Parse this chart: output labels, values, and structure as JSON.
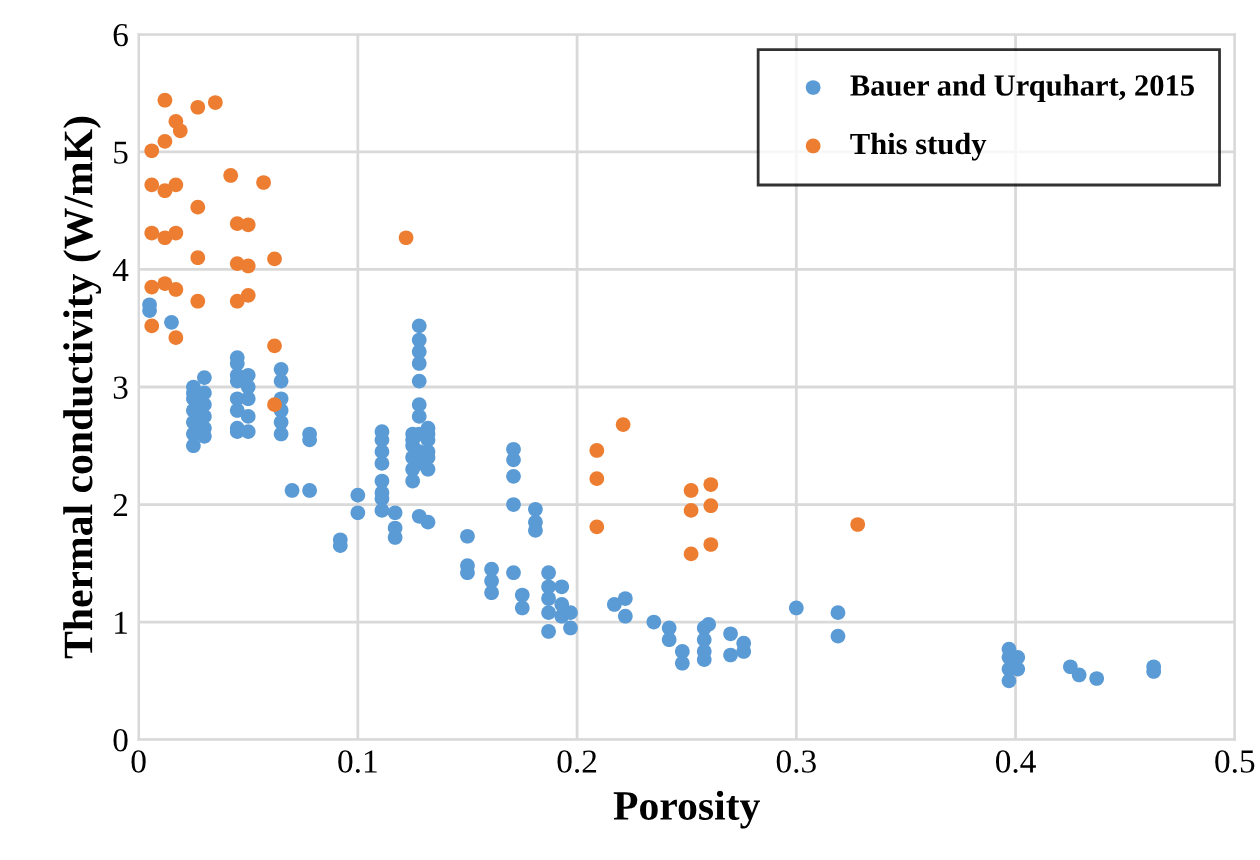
{
  "chart_data": {
    "type": "scatter",
    "xlabel": "Porosity",
    "ylabel": "Thermal conductivity (W/mK)",
    "xlim": [
      0,
      0.5
    ],
    "ylim": [
      0,
      6
    ],
    "xticks": [
      0,
      0.1,
      0.2,
      0.3,
      0.4,
      0.5
    ],
    "yticks": [
      0,
      1,
      2,
      3,
      4,
      5,
      6
    ],
    "grid": true,
    "legend": "top right",
    "marker": "circle",
    "series": [
      {
        "name": "Bauer and Urquhart, 2015",
        "color": "#5b9bd5",
        "x": [
          0.005,
          0.005,
          0.015,
          0.025,
          0.025,
          0.025,
          0.025,
          0.025,
          0.025,
          0.025,
          0.03,
          0.03,
          0.03,
          0.03,
          0.03,
          0.03,
          0.045,
          0.045,
          0.045,
          0.045,
          0.045,
          0.045,
          0.045,
          0.045,
          0.05,
          0.05,
          0.05,
          0.05,
          0.05,
          0.065,
          0.065,
          0.065,
          0.065,
          0.065,
          0.065,
          0.07,
          0.078,
          0.078,
          0.078,
          0.092,
          0.092,
          0.1,
          0.1,
          0.111,
          0.111,
          0.111,
          0.111,
          0.111,
          0.111,
          0.111,
          0.111,
          0.117,
          0.117,
          0.117,
          0.125,
          0.125,
          0.125,
          0.125,
          0.125,
          0.125,
          0.128,
          0.128,
          0.128,
          0.128,
          0.128,
          0.128,
          0.128,
          0.128,
          0.128,
          0.128,
          0.128,
          0.132,
          0.132,
          0.132,
          0.132,
          0.132,
          0.132,
          0.132,
          0.15,
          0.15,
          0.15,
          0.161,
          0.161,
          0.161,
          0.171,
          0.171,
          0.171,
          0.171,
          0.171,
          0.175,
          0.175,
          0.181,
          0.181,
          0.181,
          0.187,
          0.187,
          0.187,
          0.187,
          0.187,
          0.193,
          0.193,
          0.193,
          0.197,
          0.197,
          0.217,
          0.222,
          0.222,
          0.235,
          0.242,
          0.242,
          0.248,
          0.248,
          0.258,
          0.258,
          0.258,
          0.258,
          0.26,
          0.27,
          0.27,
          0.276,
          0.276,
          0.3,
          0.319,
          0.319,
          0.397,
          0.397,
          0.397,
          0.397,
          0.401,
          0.401,
          0.425,
          0.429,
          0.437,
          0.463,
          0.463
        ],
        "values": [
          3.7,
          3.65,
          3.55,
          3.0,
          2.95,
          2.9,
          2.8,
          2.7,
          2.6,
          2.5,
          3.08,
          2.95,
          2.85,
          2.75,
          2.65,
          2.58,
          3.25,
          3.2,
          3.1,
          3.05,
          2.9,
          2.8,
          2.65,
          2.62,
          3.1,
          3.0,
          2.9,
          2.75,
          2.62,
          3.15,
          3.05,
          2.9,
          2.8,
          2.7,
          2.6,
          2.12,
          2.6,
          2.55,
          2.12,
          1.7,
          1.65,
          2.08,
          1.93,
          2.62,
          2.55,
          2.45,
          2.35,
          2.2,
          2.1,
          2.05,
          1.95,
          1.93,
          1.8,
          1.72,
          2.6,
          2.55,
          2.5,
          2.4,
          2.3,
          2.2,
          3.52,
          3.4,
          3.3,
          3.2,
          3.05,
          2.85,
          2.75,
          2.6,
          2.45,
          2.35,
          1.9,
          2.65,
          2.6,
          2.55,
          2.45,
          2.4,
          2.3,
          1.85,
          1.73,
          1.48,
          1.42,
          1.45,
          1.35,
          1.25,
          2.47,
          2.38,
          2.24,
          2.0,
          1.42,
          1.23,
          1.12,
          1.96,
          1.85,
          1.78,
          1.42,
          1.3,
          1.2,
          1.08,
          0.92,
          1.3,
          1.15,
          1.05,
          1.08,
          0.95,
          1.15,
          1.2,
          1.05,
          1.0,
          0.95,
          0.85,
          0.75,
          0.65,
          0.95,
          0.85,
          0.75,
          0.68,
          0.98,
          0.9,
          0.72,
          0.82,
          0.75,
          1.12,
          1.08,
          0.88,
          0.77,
          0.7,
          0.6,
          0.5,
          0.7,
          0.6,
          0.62,
          0.55,
          0.52,
          0.62,
          0.58
        ]
      },
      {
        "name": "This study",
        "color": "#ed7d31",
        "x": [
          0.006,
          0.012,
          0.027,
          0.035,
          0.017,
          0.019,
          0.012,
          0.006,
          0.012,
          0.017,
          0.027,
          0.042,
          0.057,
          0.006,
          0.012,
          0.017,
          0.027,
          0.045,
          0.05,
          0.045,
          0.05,
          0.062,
          0.006,
          0.012,
          0.017,
          0.027,
          0.045,
          0.05,
          0.006,
          0.017,
          0.062,
          0.062,
          0.122,
          0.221,
          0.209,
          0.209,
          0.209,
          0.252,
          0.261,
          0.252,
          0.261,
          0.252,
          0.261,
          0.328
        ],
        "values": [
          5.01,
          5.44,
          5.38,
          5.42,
          5.26,
          5.18,
          5.09,
          4.72,
          4.67,
          4.72,
          4.53,
          4.8,
          4.74,
          4.31,
          4.27,
          4.31,
          4.1,
          4.39,
          4.38,
          4.05,
          4.03,
          4.09,
          3.85,
          3.88,
          3.83,
          3.73,
          3.73,
          3.78,
          3.52,
          3.42,
          3.35,
          2.85,
          4.27,
          2.68,
          2.46,
          2.22,
          1.81,
          2.12,
          2.17,
          1.95,
          1.99,
          1.58,
          1.66,
          1.83
        ]
      }
    ]
  }
}
